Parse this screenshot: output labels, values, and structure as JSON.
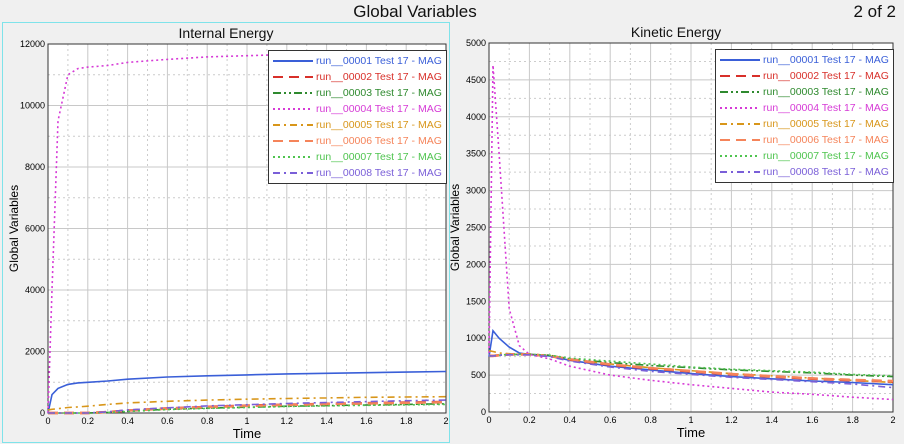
{
  "header": {
    "title": "Global Variables",
    "page": "2 of 2"
  },
  "chart_data": [
    {
      "type": "line",
      "title": "Internal Energy",
      "xlabel": "Time",
      "ylabel": "Global Variables",
      "xlim": [
        0,
        2
      ],
      "ylim": [
        0,
        12000
      ],
      "xticks": [
        "0",
        "0.2",
        "0.4",
        "0.6",
        "0.8",
        "1",
        "1.2",
        "1.4",
        "1.6",
        "1.8",
        "2"
      ],
      "yticks": [
        "0",
        "2000",
        "4000",
        "6000",
        "8000",
        "10000",
        "12000"
      ],
      "ytick_values": [
        0,
        2000,
        4000,
        6000,
        8000,
        10000,
        12000
      ],
      "legend_position": "top-right",
      "grid": true,
      "x": [
        0,
        0.02,
        0.05,
        0.1,
        0.15,
        0.2,
        0.3,
        0.4,
        0.6,
        0.8,
        1,
        1.2,
        1.4,
        1.6,
        1.8,
        2
      ],
      "series": [
        {
          "name": "run__00001 Test 17 - MAG",
          "color": "#3a5fd8",
          "style": "solid",
          "values": [
            0,
            600,
            800,
            930,
            980,
            1000,
            1040,
            1100,
            1170,
            1210,
            1240,
            1270,
            1290,
            1310,
            1330,
            1350
          ]
        },
        {
          "name": "run__00002 Test 17 - MAG",
          "color": "#d8302a",
          "style": "longdash",
          "values": [
            0,
            0,
            0,
            0,
            0,
            0,
            30,
            80,
            150,
            200,
            240,
            270,
            300,
            320,
            340,
            360
          ]
        },
        {
          "name": "run__00003 Test 17 - MAG",
          "color": "#2f8a2f",
          "style": "dashdotdot",
          "values": [
            0,
            0,
            0,
            0,
            0,
            0,
            20,
            60,
            120,
            160,
            190,
            220,
            240,
            260,
            280,
            300
          ]
        },
        {
          "name": "run__00004 Test 17 - MAG",
          "color": "#d63ad6",
          "style": "dotted",
          "values": [
            0,
            4000,
            9500,
            11000,
            11200,
            11250,
            11300,
            11400,
            11500,
            11580,
            11620,
            11660,
            11690,
            11720,
            11740,
            11760
          ]
        },
        {
          "name": "run__00005 Test 17 - MAG",
          "color": "#d8961a",
          "style": "dashdot",
          "values": [
            100,
            120,
            140,
            180,
            200,
            220,
            280,
            330,
            380,
            420,
            450,
            470,
            490,
            510,
            520,
            530
          ]
        },
        {
          "name": "run__00006 Test 17 - MAG",
          "color": "#f5845a",
          "style": "longdash",
          "values": [
            0,
            0,
            0,
            0,
            0,
            0,
            30,
            80,
            140,
            190,
            230,
            260,
            290,
            310,
            330,
            350
          ]
        },
        {
          "name": "run__00007 Test 17 - MAG",
          "color": "#4fc44f",
          "style": "dotted",
          "values": [
            0,
            0,
            0,
            0,
            0,
            0,
            20,
            50,
            110,
            150,
            180,
            210,
            230,
            250,
            265,
            280
          ]
        },
        {
          "name": "run__00008 Test 17 - MAG",
          "color": "#7a5fd8",
          "style": "dashdot",
          "values": [
            0,
            0,
            0,
            0,
            0,
            0,
            40,
            100,
            170,
            230,
            270,
            310,
            340,
            370,
            400,
            420
          ]
        }
      ]
    },
    {
      "type": "line",
      "title": "Kinetic Energy",
      "xlabel": "Time",
      "ylabel": "Global Variables",
      "xlim": [
        0,
        2
      ],
      "ylim": [
        0,
        5000
      ],
      "xticks": [
        "0",
        "0.2",
        "0.4",
        "0.6",
        "0.8",
        "1",
        "1.2",
        "1.4",
        "1.6",
        "1.8",
        "2"
      ],
      "yticks": [
        "0",
        "500",
        "1000",
        "1500",
        "2000",
        "2500",
        "3000",
        "3500",
        "4000",
        "4500",
        "5000"
      ],
      "ytick_values": [
        0,
        500,
        1000,
        1500,
        2000,
        2500,
        3000,
        3500,
        4000,
        4500,
        5000
      ],
      "legend_position": "top-right",
      "grid": true,
      "x": [
        0,
        0.02,
        0.05,
        0.1,
        0.15,
        0.2,
        0.3,
        0.4,
        0.6,
        0.8,
        1,
        1.2,
        1.4,
        1.6,
        1.8,
        2
      ],
      "series": [
        {
          "name": "run__00001 Test 17 - MAG",
          "color": "#3a5fd8",
          "style": "solid",
          "values": [
            750,
            1100,
            1000,
            880,
            800,
            780,
            760,
            700,
            620,
            570,
            520,
            480,
            450,
            420,
            400,
            370
          ]
        },
        {
          "name": "run__00002 Test 17 - MAG",
          "color": "#d8302a",
          "style": "longdash",
          "values": [
            760,
            760,
            770,
            780,
            780,
            780,
            760,
            710,
            640,
            590,
            550,
            510,
            480,
            450,
            430,
            410
          ]
        },
        {
          "name": "run__00003 Test 17 - MAG",
          "color": "#2f8a2f",
          "style": "dashdotdot",
          "values": [
            760,
            760,
            770,
            780,
            780,
            780,
            770,
            720,
            670,
            630,
            600,
            570,
            550,
            530,
            500,
            480
          ]
        },
        {
          "name": "run__00004 Test 17 - MAG",
          "color": "#d63ad6",
          "style": "dotted",
          "values": [
            800,
            4700,
            3500,
            1400,
            900,
            780,
            720,
            620,
            500,
            430,
            370,
            320,
            270,
            240,
            200,
            170
          ]
        },
        {
          "name": "run__00005 Test 17 - MAG",
          "color": "#d8961a",
          "style": "dashdot",
          "values": [
            830,
            820,
            800,
            790,
            780,
            780,
            760,
            710,
            650,
            600,
            560,
            520,
            490,
            460,
            430,
            400
          ]
        },
        {
          "name": "run__00006 Test 17 - MAG",
          "color": "#f5845a",
          "style": "longdash",
          "values": [
            760,
            760,
            770,
            780,
            780,
            780,
            760,
            715,
            645,
            595,
            555,
            515,
            485,
            455,
            435,
            420
          ]
        },
        {
          "name": "run__00007 Test 17 - MAG",
          "color": "#4fc44f",
          "style": "dotted",
          "values": [
            760,
            760,
            770,
            780,
            780,
            780,
            770,
            730,
            690,
            650,
            610,
            580,
            560,
            540,
            510,
            490
          ]
        },
        {
          "name": "run__00008 Test 17 - MAG",
          "color": "#7a5fd8",
          "style": "dashdot",
          "values": [
            760,
            760,
            770,
            775,
            775,
            775,
            750,
            690,
            610,
            550,
            510,
            470,
            440,
            410,
            380,
            330
          ]
        }
      ]
    }
  ]
}
